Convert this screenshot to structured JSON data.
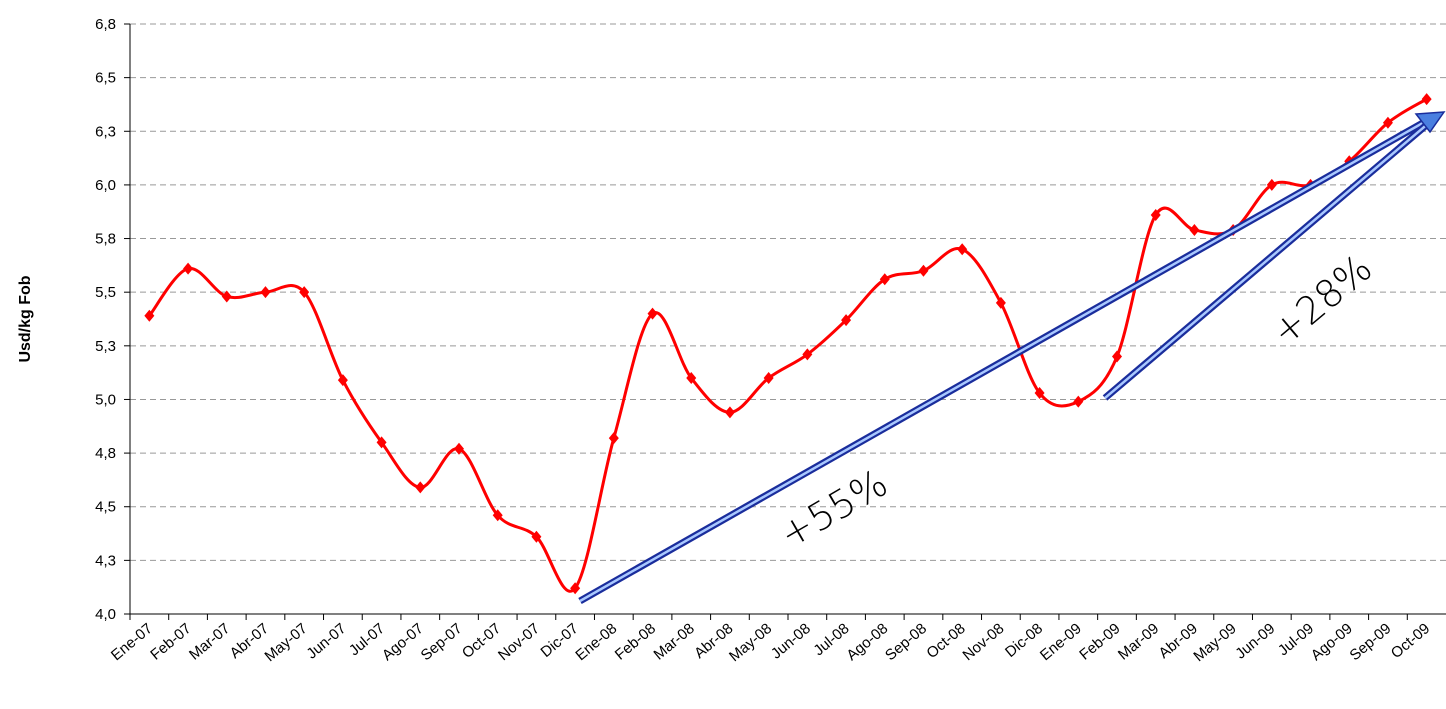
{
  "chart_data": {
    "type": "line",
    "y_label": "Usd/kg Fob",
    "categories": [
      "Ene-07",
      "Feb-07",
      "Mar-07",
      "Abr-07",
      "May-07",
      "Jun-07",
      "Jul-07",
      "Ago-07",
      "Sep-07",
      "Oct-07",
      "Nov-07",
      "Dic-07",
      "Ene-08",
      "Feb-08",
      "Mar-08",
      "Abr-08",
      "May-08",
      "Jun-08",
      "Jul-08",
      "Ago-08",
      "Sep-08",
      "Oct-08",
      "Nov-08",
      "Dic-08",
      "Ene-09",
      "Feb-09",
      "Mar-09",
      "Abr-09",
      "May-09",
      "Jun-09",
      "Jul-09",
      "Ago-09",
      "Sep-09",
      "Oct-09"
    ],
    "series": [
      {
        "color": "#ff0000",
        "values": [
          5.39,
          5.61,
          5.48,
          5.5,
          5.5,
          5.09,
          4.8,
          4.59,
          4.77,
          4.46,
          4.36,
          4.12,
          4.82,
          5.4,
          5.1,
          4.94,
          5.1,
          5.21,
          5.37,
          5.56,
          5.6,
          5.7,
          5.45,
          5.03,
          4.99,
          5.2,
          5.86,
          5.79,
          5.79,
          6.0,
          6.0,
          6.11,
          6.29,
          6.4
        ]
      }
    ],
    "ylim": [
      4,
      6.75
    ],
    "yticks": [
      {
        "value": 4,
        "label": "4,0"
      },
      {
        "value": 4.25,
        "label": "4,3"
      },
      {
        "value": 4.5,
        "label": "4,5"
      },
      {
        "value": 4.75,
        "label": "4,8"
      },
      {
        "value": 5,
        "label": "5,0"
      },
      {
        "value": 5.25,
        "label": "5,3"
      },
      {
        "value": 5.5,
        "label": "5,5"
      },
      {
        "value": 5.75,
        "label": "5,8"
      },
      {
        "value": 6,
        "label": "6,0"
      },
      {
        "value": 6.25,
        "label": "6,3"
      },
      {
        "value": 6.5,
        "label": "6,5"
      },
      {
        "value": 6.75,
        "label": "6,8"
      }
    ],
    "grid": true,
    "annotations": [
      "+55%",
      "+28%"
    ]
  }
}
